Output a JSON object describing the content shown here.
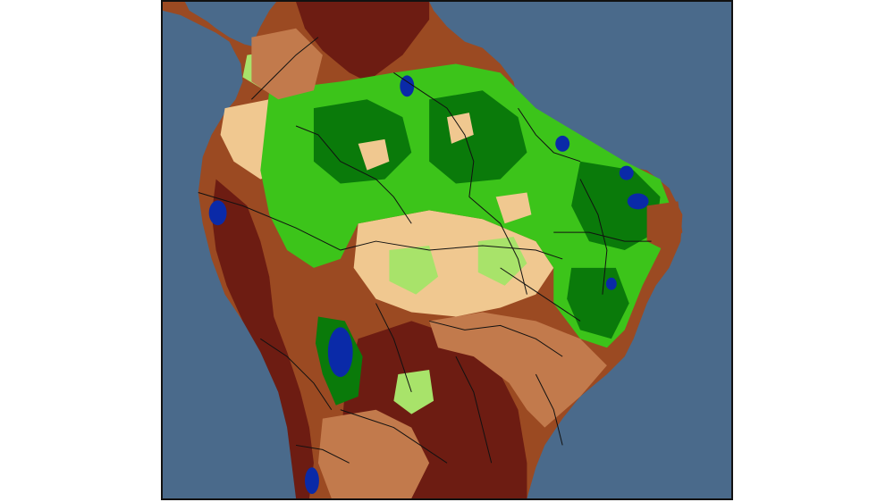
{
  "map": {
    "colors": {
      "ocean": "#4a6a8b",
      "very_dry": "#6d1c12",
      "dry": "#9b4a22",
      "moderately_dry": "#c27a4c",
      "slightly_dry": "#f0c890",
      "slightly_wet": "#a8e36a",
      "wet": "#3cc41a",
      "very_wet": "#0a7a0a",
      "wettest": "#0a2aa8",
      "borders": "#111111"
    }
  }
}
